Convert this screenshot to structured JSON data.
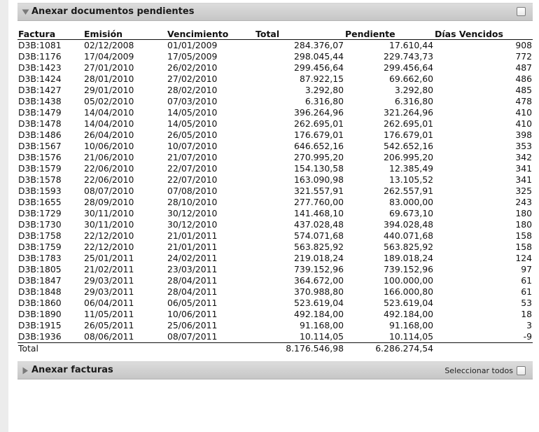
{
  "docs_section": {
    "title": "Anexar documentos pendientes",
    "expanded": true
  },
  "table": {
    "columns": [
      "Factura",
      "Emisión",
      "Vencimiento",
      "Total",
      "Pendiente",
      "Días Vencidos"
    ],
    "rows": [
      [
        "D3B:1081",
        "02/12/2008",
        "01/01/2009",
        "284.376,07",
        "17.610,44",
        "908"
      ],
      [
        "D3B:1176",
        "17/04/2009",
        "17/05/2009",
        "298.045,44",
        "229.743,73",
        "772"
      ],
      [
        "D3B:1423",
        "27/01/2010",
        "26/02/2010",
        "299.456,64",
        "299.456,64",
        "487"
      ],
      [
        "D3B:1424",
        "28/01/2010",
        "27/02/2010",
        "87.922,15",
        "69.662,60",
        "486"
      ],
      [
        "D3B:1427",
        "29/01/2010",
        "28/02/2010",
        "3.292,80",
        "3.292,80",
        "485"
      ],
      [
        "D3B:1438",
        "05/02/2010",
        "07/03/2010",
        "6.316,80",
        "6.316,80",
        "478"
      ],
      [
        "D3B:1479",
        "14/04/2010",
        "14/05/2010",
        "396.264,96",
        "321.264,96",
        "410"
      ],
      [
        "D3B:1478",
        "14/04/2010",
        "14/05/2010",
        "262.695,01",
        "262.695,01",
        "410"
      ],
      [
        "D3B:1486",
        "26/04/2010",
        "26/05/2010",
        "176.679,01",
        "176.679,01",
        "398"
      ],
      [
        "D3B:1567",
        "10/06/2010",
        "10/07/2010",
        "646.652,16",
        "542.652,16",
        "353"
      ],
      [
        "D3B:1576",
        "21/06/2010",
        "21/07/2010",
        "270.995,20",
        "206.995,20",
        "342"
      ],
      [
        "D3B:1579",
        "22/06/2010",
        "22/07/2010",
        "154.130,58",
        "12.385,49",
        "341"
      ],
      [
        "D3B:1578",
        "22/06/2010",
        "22/07/2010",
        "163.090,98",
        "13.105,52",
        "341"
      ],
      [
        "D3B:1593",
        "08/07/2010",
        "07/08/2010",
        "321.557,91",
        "262.557,91",
        "325"
      ],
      [
        "D3B:1655",
        "28/09/2010",
        "28/10/2010",
        "277.760,00",
        "83.000,00",
        "243"
      ],
      [
        "D3B:1729",
        "30/11/2010",
        "30/12/2010",
        "141.468,10",
        "69.673,10",
        "180"
      ],
      [
        "D3B:1730",
        "30/11/2010",
        "30/12/2010",
        "437.028,48",
        "394.028,48",
        "180"
      ],
      [
        "D3B:1758",
        "22/12/2010",
        "21/01/2011",
        "574.071,68",
        "440.071,68",
        "158"
      ],
      [
        "D3B:1759",
        "22/12/2010",
        "21/01/2011",
        "563.825,92",
        "563.825,92",
        "158"
      ],
      [
        "D3B:1783",
        "25/01/2011",
        "24/02/2011",
        "219.018,24",
        "189.018,24",
        "124"
      ],
      [
        "D3B:1805",
        "21/02/2011",
        "23/03/2011",
        "739.152,96",
        "739.152,96",
        "97"
      ],
      [
        "D3B:1847",
        "29/03/2011",
        "28/04/2011",
        "364.672,00",
        "100.000,00",
        "61"
      ],
      [
        "D3B:1848",
        "29/03/2011",
        "28/04/2011",
        "370.988,80",
        "166.000,80",
        "61"
      ],
      [
        "D3B:1860",
        "06/04/2011",
        "06/05/2011",
        "523.619,04",
        "523.619,04",
        "53"
      ],
      [
        "D3B:1890",
        "11/05/2011",
        "10/06/2011",
        "492.184,00",
        "492.184,00",
        "18"
      ],
      [
        "D3B:1915",
        "26/05/2011",
        "25/06/2011",
        "91.168,00",
        "91.168,00",
        "3"
      ],
      [
        "D3B:1936",
        "08/06/2011",
        "08/07/2011",
        "10.114,05",
        "10.114,05",
        "-9"
      ]
    ],
    "totals": {
      "label": "Total",
      "total": "8.176.546,98",
      "pendiente": "6.286.274,54"
    }
  },
  "invoices_section": {
    "title": "Anexar facturas",
    "expanded": false,
    "select_all_label": "Seleccionar todos"
  },
  "icons": {
    "expanded": "disclosure-triangle-down-icon",
    "collapsed": "disclosure-triangle-right-icon"
  }
}
